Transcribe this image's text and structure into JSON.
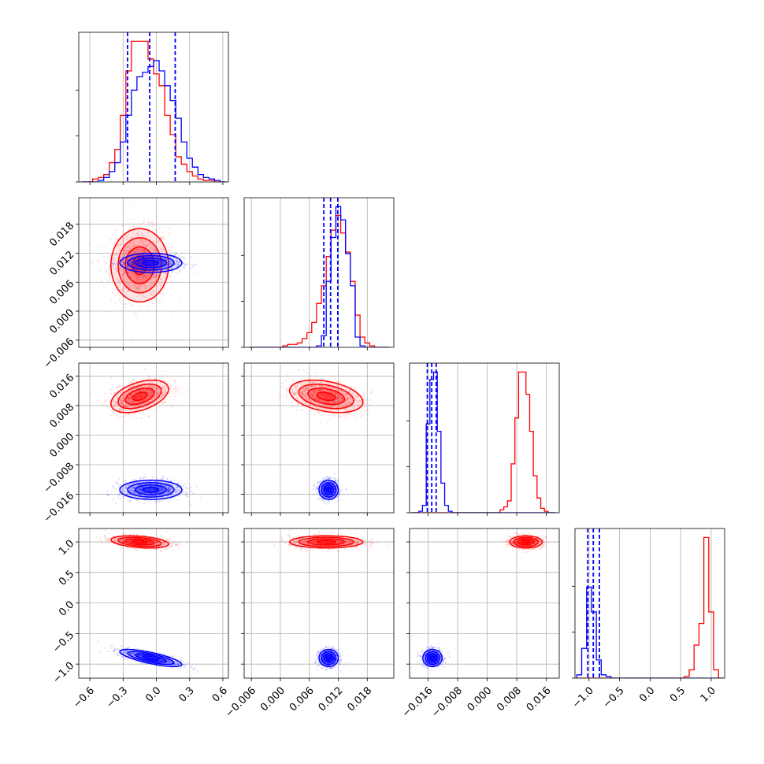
{
  "chart_data": {
    "type": "corner",
    "title": "",
    "parameters": 4,
    "colors": {
      "series_a": "#ff0000",
      "series_b": "#0000ff",
      "grid": "#b0b0b0",
      "axes": "#000000"
    },
    "grid": true,
    "axes": [
      {
        "ticks": [
          "−0.6",
          "−0.3",
          "0.0",
          "0.3",
          "0.6"
        ],
        "tick_values": [
          -0.6,
          -0.3,
          0.0,
          0.3,
          0.6
        ],
        "range": [
          -0.7,
          0.65
        ]
      },
      {
        "ticks": [
          "−0.006",
          "0.000",
          "0.006",
          "0.012",
          "0.018"
        ],
        "tick_values": [
          -0.006,
          0.0,
          0.006,
          0.012,
          0.018
        ],
        "range": [
          -0.0075,
          0.0235
        ]
      },
      {
        "ticks": [
          "−0.016",
          "−0.008",
          "0.000",
          "0.008",
          "0.016"
        ],
        "tick_values": [
          -0.016,
          -0.008,
          0.0,
          0.008,
          0.016
        ],
        "range": [
          -0.021,
          0.0195
        ]
      },
      {
        "ticks": [
          "−1.0",
          "−0.5",
          "0.0",
          "0.5",
          "1.0"
        ],
        "tick_values": [
          -1.0,
          -0.5,
          0.0,
          0.5,
          1.0
        ],
        "range": [
          -1.23,
          1.22
        ]
      }
    ],
    "series": [
      {
        "color": "red",
        "mean": [
          -0.15,
          0.0095,
          0.0105,
          1.0
        ],
        "std": [
          0.13,
          0.0038,
          0.0022,
          0.05
        ],
        "corr": {
          "0-1": 0.0,
          "0-2": 0.45,
          "0-3": -0.35,
          "1-2": -0.35,
          "1-3": 0.0,
          "2-3": 0.0
        },
        "quantile_lines": []
      },
      {
        "color": "blue",
        "mean": [
          -0.05,
          0.01,
          -0.0148,
          -0.9
        ],
        "std": [
          0.14,
          0.001,
          0.0013,
          0.07
        ],
        "corr": {
          "0-1": 0.0,
          "0-2": 0.0,
          "0-3": -0.75,
          "1-2": 0.0,
          "1-3": 0.0,
          "2-3": 0.0
        },
        "quantile_lines": [
          [
            -0.26,
            -0.06,
            0.17
          ],
          [
            0.009,
            0.0104,
            0.0119
          ],
          [
            -0.0162,
            -0.015,
            -0.0138
          ],
          [
            -1.02,
            -0.93,
            -0.83
          ]
        ]
      }
    ],
    "histograms": [
      {
        "bins": [
          -0.675,
          -0.625,
          -0.575,
          -0.525,
          -0.475,
          -0.425,
          -0.375,
          -0.325,
          -0.275,
          -0.225,
          -0.175,
          -0.125,
          -0.075,
          -0.025,
          0.025,
          0.075,
          0.125,
          0.175,
          0.225,
          0.275,
          0.325,
          0.375,
          0.425,
          0.475,
          0.525,
          0.575,
          0.625
        ],
        "red": [
          0,
          0,
          0.02,
          0.03,
          0.05,
          0.13,
          0.22,
          0.45,
          0.75,
          0.95,
          0.95,
          0.95,
          0.83,
          0.73,
          0.65,
          0.45,
          0.32,
          0.17,
          0.12,
          0.07,
          0.04,
          0.02,
          0.01,
          0.01,
          0,
          0
        ],
        "blue": [
          0,
          0,
          0,
          0.01,
          0.03,
          0.07,
          0.13,
          0.27,
          0.45,
          0.62,
          0.71,
          0.74,
          0.78,
          0.82,
          0.75,
          0.65,
          0.55,
          0.43,
          0.27,
          0.16,
          0.1,
          0.05,
          0.03,
          0.02,
          0.01,
          0
        ]
      },
      {
        "bins": [
          -0.0065,
          -0.0055,
          -0.0045,
          -0.0035,
          -0.0025,
          -0.0015,
          -0.0005,
          0.0005,
          0.0015,
          0.0025,
          0.0035,
          0.0045,
          0.0055,
          0.0065,
          0.0075,
          0.0085,
          0.0095,
          0.0105,
          0.0115,
          0.0125,
          0.0135,
          0.0145,
          0.0155,
          0.0165,
          0.0175,
          0.0185,
          0.0195,
          0.0205,
          0.0215,
          0.0225
        ],
        "red": [
          0,
          0,
          0,
          0,
          0,
          0,
          0,
          0.01,
          0.02,
          0.02,
          0.03,
          0.06,
          0.1,
          0.17,
          0.3,
          0.42,
          0.62,
          0.8,
          0.9,
          0.78,
          0.65,
          0.45,
          0.22,
          0.07,
          0.03,
          0.01,
          0,
          0,
          0
        ],
        "blue": [
          0,
          0,
          0,
          0,
          0,
          0,
          0,
          0,
          0,
          0,
          0,
          0,
          0,
          0,
          0.01,
          0.08,
          0.45,
          0.75,
          0.96,
          0.87,
          0.64,
          0.42,
          0.07,
          0.01,
          0,
          0,
          0,
          0,
          0
        ]
      },
      {
        "bins": [
          -0.0205,
          -0.0195,
          -0.0185,
          -0.0175,
          -0.0165,
          -0.0155,
          -0.0145,
          -0.0135,
          -0.0125,
          -0.0115,
          -0.0105,
          -0.0095,
          -0.0085,
          -0.0075,
          -0.0065,
          -0.0055,
          -0.0045,
          -0.0035,
          -0.0025,
          -0.0015,
          -0.0005,
          0.0005,
          0.0015,
          0.0025,
          0.0035,
          0.0045,
          0.0055,
          0.0065,
          0.0075,
          0.0085,
          0.0095,
          0.0105,
          0.0115,
          0.0125,
          0.0135,
          0.0145,
          0.0155,
          0.0165,
          0.0175,
          0.0185,
          0.0195
        ],
        "red": [
          0,
          0,
          0,
          0,
          0,
          0,
          0,
          0,
          0,
          0,
          0,
          0,
          0,
          0,
          0,
          0,
          0,
          0,
          0,
          0,
          0,
          0,
          0,
          0,
          0.02,
          0.04,
          0.08,
          0.33,
          0.64,
          0.95,
          0.95,
          0.8,
          0.55,
          0.25,
          0.1,
          0.03,
          0.01,
          0,
          0
        ],
        "blue": [
          0,
          0,
          0.01,
          0.05,
          0.6,
          0.9,
          0.95,
          0.55,
          0.2,
          0.05,
          0.01,
          0,
          0,
          0,
          0,
          0,
          0,
          0,
          0,
          0,
          0,
          0,
          0,
          0,
          0,
          0,
          0,
          0,
          0,
          0,
          0,
          0,
          0,
          0,
          0,
          0,
          0,
          0,
          0
        ]
      },
      {
        "bins": [
          -1.2,
          -1.12,
          -1.04,
          -0.96,
          -0.88,
          -0.8,
          -0.72,
          -0.64,
          -0.56,
          -0.48,
          -0.4,
          -0.32,
          -0.24,
          -0.16,
          -0.08,
          0.0,
          0.08,
          0.16,
          0.24,
          0.32,
          0.4,
          0.48,
          0.56,
          0.64,
          0.72,
          0.8,
          0.88,
          0.96,
          1.04,
          1.12,
          1.2
        ],
        "red": [
          0,
          0,
          0,
          0,
          0,
          0,
          0,
          0,
          0,
          0,
          0,
          0,
          0,
          0,
          0,
          0,
          0,
          0,
          0,
          0,
          0,
          0,
          0.01,
          0.05,
          0.2,
          0.33,
          0.85,
          0.4,
          0.05,
          0
        ],
        "blue": [
          0.02,
          0.18,
          0.55,
          0.4,
          0.11,
          0.02,
          0.01,
          0,
          0,
          0,
          0,
          0,
          0,
          0,
          0,
          0,
          0,
          0,
          0,
          0,
          0,
          0,
          0,
          0,
          0,
          0,
          0,
          0,
          0,
          0
        ]
      }
    ]
  }
}
